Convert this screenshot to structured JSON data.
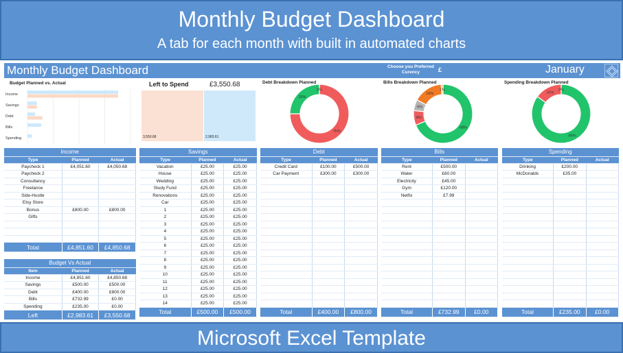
{
  "banner": {
    "title": "Monthly Budget Dashboard",
    "subtitle": "A tab for each month with built in automated charts",
    "footer": "Microsoft Excel Template"
  },
  "sheet": {
    "title": "Monthly Budget Dashboard",
    "currency_label": "Choose you Preferred Curency",
    "currency_symbol": "£",
    "month": "January"
  },
  "colors": {
    "accent": "#5b92d2",
    "green": "#21c46b",
    "red": "#f05c5c",
    "orange": "#f07b24",
    "grey": "#b5b5b5",
    "planned_bar": "#cde9fb",
    "actual_bar": "#fbd9c6"
  },
  "chart_data": [
    {
      "type": "bar",
      "title": "Budget Planned vs. Actual",
      "categories": [
        "Income",
        "Savings",
        "Debt",
        "Bills",
        "Spending"
      ],
      "series": [
        {
          "name": "Planned",
          "values": [
            4851.6,
            500.0,
            400.0,
            732.99,
            235.0
          ]
        },
        {
          "name": "Actual",
          "values": [
            4850.68,
            500.0,
            800.0,
            0.0,
            0.0
          ]
        }
      ]
    },
    {
      "type": "bar",
      "title": "Left to Spend",
      "total_label": "£3,550.68",
      "values": [
        3550.68,
        2983.61
      ],
      "value_labels": [
        "3,550.68",
        "2,983.61"
      ]
    },
    {
      "type": "pie",
      "title": "Debt Breakdown Planned",
      "slices": [
        {
          "label": "75%",
          "value": 75
        },
        {
          "label": "25%",
          "value": 25
        },
        {
          "label": "0%",
          "value": 0
        }
      ]
    },
    {
      "type": "pie",
      "title": "Bills Breakdown Planned",
      "slices": [
        {
          "label": "68%",
          "value": 68
        },
        {
          "label": "8%",
          "value": 8
        },
        {
          "label": "6%",
          "value": 6
        },
        {
          "label": "16%",
          "value": 16
        },
        {
          "label": "1%",
          "value": 1
        }
      ]
    },
    {
      "type": "pie",
      "title": "Spending Breakdown Planned",
      "slices": [
        {
          "label": "85%",
          "value": 85
        },
        {
          "label": "15%",
          "value": 15
        },
        {
          "label": "0%",
          "value": 0
        }
      ]
    }
  ],
  "tables": {
    "income": {
      "title": "Income",
      "columns": [
        "Type",
        "Planned",
        "Actual"
      ],
      "rows": [
        [
          "Paycheck 1",
          "£4,051.60",
          "£4,050.68"
        ],
        [
          "Paycheck 2",
          "",
          ""
        ],
        [
          "Consultancy",
          "",
          ""
        ],
        [
          "Freelance",
          "",
          ""
        ],
        [
          "Side-Hustle",
          "",
          ""
        ],
        [
          "Etsy Store",
          "",
          ""
        ],
        [
          "Bonus",
          "£800.00",
          "£800.00"
        ],
        [
          "Gifts",
          "",
          ""
        ],
        [
          "",
          "",
          ""
        ],
        [
          "",
          "",
          ""
        ],
        [
          "",
          "",
          ""
        ]
      ],
      "total": [
        "Total",
        "£4,851.60",
        "£4,850.68"
      ]
    },
    "bva": {
      "title": "Budget Vs Actual",
      "columns": [
        "Item",
        "Planned",
        "Actual"
      ],
      "rows": [
        [
          "Income",
          "£4,851.60",
          "£4,850.68"
        ],
        [
          "Savings",
          "£500.00",
          "£500.00"
        ],
        [
          "Debt",
          "£400.00",
          "£800.00"
        ],
        [
          "Bills",
          "£732.99",
          "£0.00"
        ],
        [
          "Spending",
          "£235.00",
          "£0.00"
        ]
      ],
      "total": [
        "Left",
        "£2,983.61",
        "£3,550.68"
      ]
    },
    "savings": {
      "title": "Savings",
      "columns": [
        "Type",
        "Planned",
        "Actual"
      ],
      "rows": [
        [
          "Vacation",
          "£25.00",
          "£25.00"
        ],
        [
          "House",
          "£25.00",
          "£25.00"
        ],
        [
          "Wedding",
          "£25.00",
          "£25.00"
        ],
        [
          "Study Fund",
          "£25.00",
          "£25.00"
        ],
        [
          "Renovations",
          "£25.00",
          "£25.00"
        ],
        [
          "Car",
          "£25.00",
          "£25.00"
        ],
        [
          "1",
          "£25.00",
          "£25.00"
        ],
        [
          "2",
          "£25.00",
          "£25.00"
        ],
        [
          "3",
          "£25.00",
          "£25.00"
        ],
        [
          "4",
          "£25.00",
          "£25.00"
        ],
        [
          "5",
          "£25.00",
          "£25.00"
        ],
        [
          "6",
          "£25.00",
          "£25.00"
        ],
        [
          "7",
          "£25.00",
          "£25.00"
        ],
        [
          "8",
          "£25.00",
          "£25.00"
        ],
        [
          "9",
          "£25.00",
          "£25.00"
        ],
        [
          "10",
          "£25.00",
          "£25.00"
        ],
        [
          "11",
          "£25.00",
          "£25.00"
        ],
        [
          "12",
          "£25.00",
          "£25.00"
        ],
        [
          "13",
          "£25.00",
          "£25.00"
        ],
        [
          "14",
          "£25.00",
          "£25.00"
        ]
      ],
      "total": [
        "Total",
        "£500.00",
        "£500.00"
      ]
    },
    "debt": {
      "title": "Debt",
      "columns": [
        "Type",
        "Planned",
        "Actual"
      ],
      "rows": [
        [
          "Credit Card",
          "£100.00",
          "£500.00"
        ],
        [
          "Car Payment",
          "£300.00",
          "£300.00"
        ],
        [
          "",
          "",
          ""
        ],
        [
          "",
          "",
          ""
        ],
        [
          "",
          "",
          ""
        ],
        [
          "",
          "",
          ""
        ],
        [
          "",
          "",
          ""
        ],
        [
          "",
          "",
          ""
        ],
        [
          "",
          "",
          ""
        ],
        [
          "",
          "",
          ""
        ],
        [
          "",
          "",
          ""
        ],
        [
          "",
          "",
          ""
        ],
        [
          "",
          "",
          ""
        ],
        [
          "",
          "",
          ""
        ],
        [
          "",
          "",
          ""
        ],
        [
          "",
          "",
          ""
        ],
        [
          "",
          "",
          ""
        ],
        [
          "",
          "",
          ""
        ],
        [
          "",
          "",
          ""
        ],
        [
          "",
          "",
          ""
        ]
      ],
      "total": [
        "Total",
        "£400.00",
        "£800.00"
      ]
    },
    "bills": {
      "title": "Bills",
      "columns": [
        "Type",
        "Planned",
        "Actual"
      ],
      "rows": [
        [
          "Rent",
          "£500.00",
          ""
        ],
        [
          "Water",
          "£60.00",
          ""
        ],
        [
          "Electricity",
          "£45.00",
          ""
        ],
        [
          "Gym",
          "£120.00",
          ""
        ],
        [
          "Netfix",
          "£7.99",
          ""
        ],
        [
          "",
          "",
          ""
        ],
        [
          "",
          "",
          ""
        ],
        [
          "",
          "",
          ""
        ],
        [
          "",
          "",
          ""
        ],
        [
          "",
          "",
          ""
        ],
        [
          "",
          "",
          ""
        ],
        [
          "",
          "",
          ""
        ],
        [
          "",
          "",
          ""
        ],
        [
          "",
          "",
          ""
        ],
        [
          "",
          "",
          ""
        ],
        [
          "",
          "",
          ""
        ],
        [
          "",
          "",
          ""
        ],
        [
          "",
          "",
          ""
        ],
        [
          "",
          "",
          ""
        ],
        [
          "",
          "",
          ""
        ]
      ],
      "total": [
        "Total",
        "£732.99",
        "£0.00"
      ]
    },
    "spending": {
      "title": "Spending",
      "columns": [
        "Type",
        "Planned",
        "Actual"
      ],
      "rows": [
        [
          "Drinking",
          "£200.00",
          ""
        ],
        [
          "McDonalds",
          "£35.00",
          ""
        ],
        [
          "",
          "",
          ""
        ],
        [
          "",
          "",
          ""
        ],
        [
          "",
          "",
          ""
        ],
        [
          "",
          "",
          ""
        ],
        [
          "",
          "",
          ""
        ],
        [
          "",
          "",
          ""
        ],
        [
          "",
          "",
          ""
        ],
        [
          "",
          "",
          ""
        ],
        [
          "",
          "",
          ""
        ],
        [
          "",
          "",
          ""
        ],
        [
          "",
          "",
          ""
        ],
        [
          "",
          "",
          ""
        ],
        [
          "",
          "",
          ""
        ],
        [
          "",
          "",
          ""
        ],
        [
          "",
          "",
          ""
        ],
        [
          "",
          "",
          ""
        ],
        [
          "",
          "",
          ""
        ],
        [
          "",
          "",
          ""
        ]
      ],
      "total": [
        "Total",
        "£235.00",
        "£0.00"
      ]
    }
  }
}
